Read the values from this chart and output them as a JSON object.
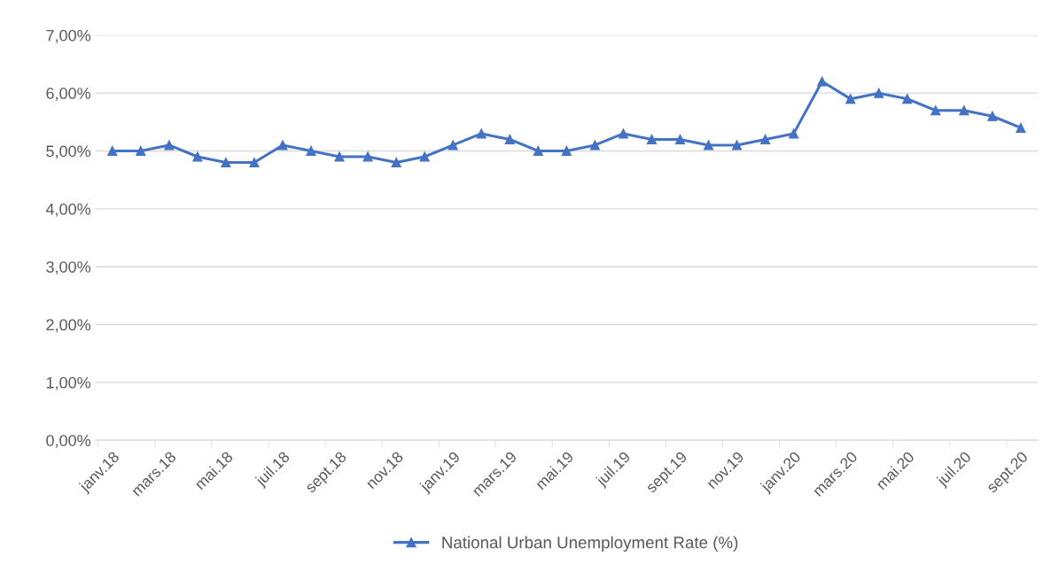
{
  "chart_data": {
    "type": "line",
    "categories": [
      "janv.18",
      null,
      "mars.18",
      null,
      "mai.18",
      null,
      "juil.18",
      null,
      "sept.18",
      null,
      "nov.18",
      null,
      "janv.19",
      null,
      "mars.19",
      null,
      "mai.19",
      null,
      "juil.19",
      null,
      "sept.19",
      null,
      "nov.19",
      null,
      "janv.20",
      null,
      "mars.20",
      null,
      "mai.20",
      null,
      "juil.20",
      null,
      "sept.20"
    ],
    "series": [
      {
        "name": "National Urban Unemployment Rate (%)",
        "color": "#4472c4",
        "values": [
          5.0,
          5.0,
          5.1,
          4.9,
          4.8,
          4.8,
          5.1,
          5.0,
          4.9,
          4.9,
          4.8,
          4.9,
          5.1,
          5.3,
          5.2,
          5.0,
          5.0,
          5.1,
          5.3,
          5.2,
          5.2,
          5.1,
          5.1,
          5.2,
          5.3,
          6.2,
          5.9,
          6.0,
          5.9,
          5.7,
          5.7,
          5.6,
          5.4
        ]
      }
    ],
    "ylim": [
      0,
      7
    ],
    "yticks": [
      {
        "value": 0,
        "label": "0,00%"
      },
      {
        "value": 1,
        "label": "1,00%"
      },
      {
        "value": 2,
        "label": "2,00%"
      },
      {
        "value": 3,
        "label": "3,00%"
      },
      {
        "value": 4,
        "label": "4,00%"
      },
      {
        "value": 5,
        "label": "5,00%"
      },
      {
        "value": 6,
        "label": "6,00%"
      },
      {
        "value": 7,
        "label": "7,00%"
      }
    ],
    "grid": "y",
    "legend": "bottom",
    "marker": "triangle",
    "line_style": "solid"
  }
}
